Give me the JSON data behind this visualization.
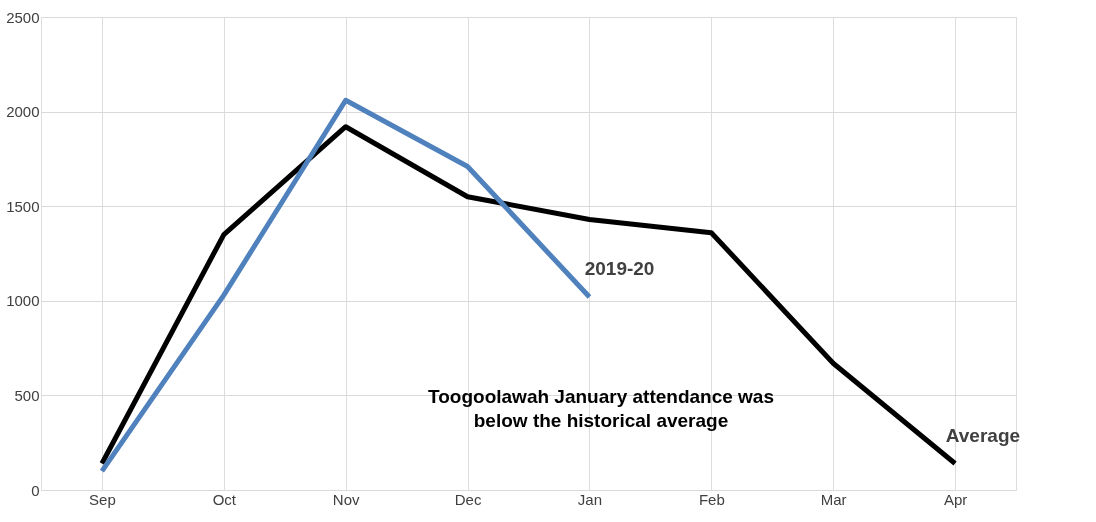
{
  "chart_data": {
    "type": "line",
    "categories": [
      "Sep",
      "Oct",
      "Nov",
      "Dec",
      "Jan",
      "Feb",
      "Mar",
      "Apr"
    ],
    "series": [
      {
        "name": "Average",
        "color": "#000000",
        "values": [
          140,
          1350,
          1920,
          1550,
          1430,
          1360,
          670,
          140
        ]
      },
      {
        "name": "2019-20",
        "color": "#4f81bd",
        "values": [
          100,
          1030,
          2060,
          1710,
          1020,
          null,
          null,
          null
        ]
      }
    ],
    "ylim": [
      0,
      2500
    ],
    "yticks": [
      0,
      500,
      1000,
      1500,
      2000,
      2500
    ],
    "grid": true,
    "legend": false,
    "marker": "none",
    "line_style": "solid",
    "annotations": [
      "Toogoolawah January attendance was\nbelow the historical average"
    ]
  }
}
